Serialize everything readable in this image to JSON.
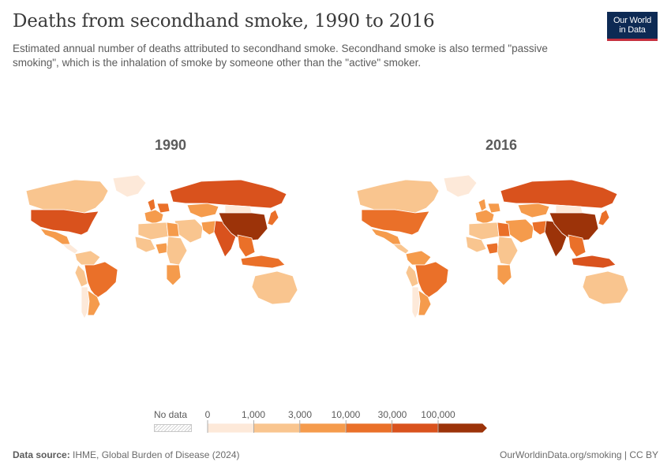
{
  "header": {
    "title": "Deaths from secondhand smoke, 1990 to 2016",
    "subtitle": "Estimated annual number of deaths attributed to secondhand smoke. Secondhand smoke is also termed \"passive smoking\", which is the inhalation of smoke by someone other than the \"active\" smoker.",
    "logo_line1": "Our World",
    "logo_line2": "in Data"
  },
  "maps": [
    {
      "year_label": "1990"
    },
    {
      "year_label": "2016"
    }
  ],
  "legend": {
    "no_data_label": "No data",
    "ticks": [
      "0",
      "1,000",
      "3,000",
      "10,000",
      "30,000",
      "100,000"
    ],
    "colors": [
      "#fde9d9",
      "#f9c58f",
      "#f59b4c",
      "#ea7029",
      "#d9521d",
      "#9c3309"
    ]
  },
  "footer": {
    "source_label": "Data source:",
    "source_text": "IHME, Global Burden of Disease (2024)",
    "url_text": "OurWorldinData.org/smoking | CC BY"
  },
  "chart_data": {
    "type": "choropleth",
    "title": "Deaths from secondhand smoke, 1990 to 2016",
    "bins": [
      0,
      1000,
      3000,
      10000,
      30000,
      100000
    ],
    "panels": [
      {
        "year": "1990",
        "regions": {
          "canada": "1,000-3,000",
          "usa": "30,000-100,000",
          "mexico": "3,000-10,000",
          "greenland": "0-1,000",
          "central_america": "0-1,000",
          "colombia_venezuela": "1,000-3,000",
          "peru": "1,000-3,000",
          "brazil": "10,000-30,000",
          "argentina": "3,000-10,000",
          "chile": "0-1,000",
          "europe_west": "3,000-10,000",
          "uk": "10,000-30,000",
          "germany": "10,000-30,000",
          "russia": "30,000-100,000",
          "kazakhstan": "3,000-10,000",
          "north_africa": "1,000-3,000",
          "west_africa": "1,000-3,000",
          "egypt": "3,000-10,000",
          "nigeria": "3,000-10,000",
          "east_africa": "1,000-3,000",
          "south_africa": "3,000-10,000",
          "middle_east": "1,000-3,000",
          "iran": "3,000-10,000",
          "india": "30,000-100,000",
          "china": "100,000+",
          "mongolia": "0-1,000",
          "japan": "10,000-30,000",
          "southeast_asia": "10,000-30,000",
          "indonesia": "10,000-30,000",
          "australia": "1,000-3,000"
        }
      },
      {
        "year": "2016",
        "regions": {
          "canada": "1,000-3,000",
          "usa": "10,000-30,000",
          "mexico": "3,000-10,000",
          "greenland": "0-1,000",
          "central_america": "1,000-3,000",
          "colombia_venezuela": "3,000-10,000",
          "peru": "1,000-3,000",
          "brazil": "10,000-30,000",
          "argentina": "3,000-10,000",
          "chile": "0-1,000",
          "europe_west": "3,000-10,000",
          "uk": "3,000-10,000",
          "germany": "3,000-10,000",
          "russia": "30,000-100,000",
          "kazakhstan": "3,000-10,000",
          "north_africa": "1,000-3,000",
          "west_africa": "1,000-3,000",
          "egypt": "10,000-30,000",
          "nigeria": "10,000-30,000",
          "east_africa": "1,000-3,000",
          "south_africa": "3,000-10,000",
          "middle_east": "3,000-10,000",
          "iran": "10,000-30,000",
          "india": "100,000+",
          "china": "100,000+",
          "mongolia": "0-1,000",
          "japan": "10,000-30,000",
          "southeast_asia": "10,000-30,000",
          "indonesia": "30,000-100,000",
          "australia": "1,000-3,000"
        }
      }
    ]
  }
}
